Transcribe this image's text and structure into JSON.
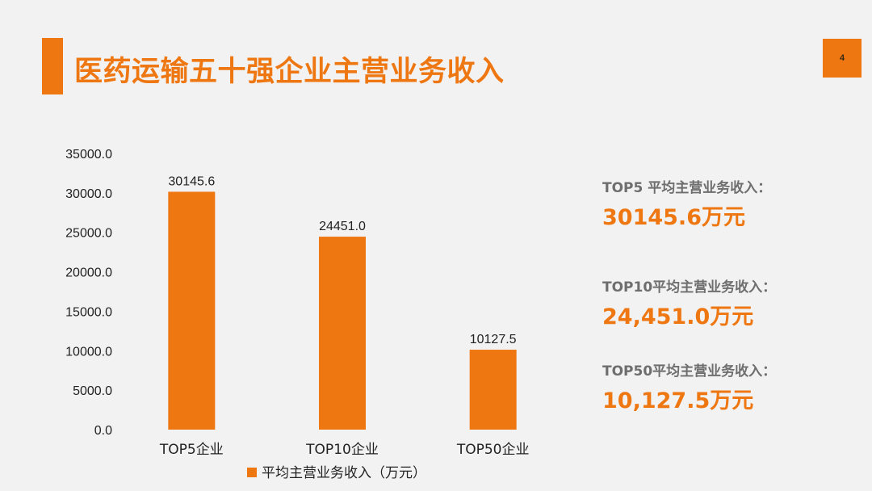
{
  "slide": {
    "title": "医药运输五十强企业主营业务收入",
    "page_number": "4"
  },
  "colors": {
    "accent": "#ee7712",
    "background": "#f2f2f2",
    "stat_label": "#6e6e6e"
  },
  "chart_data": {
    "type": "bar",
    "categories": [
      "TOP5企业",
      "TOP10企业",
      "TOP50企业"
    ],
    "series": [
      {
        "name": "平均主营业务收入（万元）",
        "values": [
          30145.6,
          24451.0,
          10127.5
        ],
        "labels": [
          "30145.6",
          "24451.0",
          "10127.5"
        ],
        "color": "#ee7712"
      }
    ],
    "ylim": [
      0,
      35000
    ],
    "yticks": [
      "0.0",
      "5000.0",
      "10000.0",
      "15000.0",
      "20000.0",
      "25000.0",
      "30000.0",
      "35000.0"
    ],
    "ytick_values": [
      0,
      5000,
      10000,
      15000,
      20000,
      25000,
      30000,
      35000
    ],
    "grid": false,
    "legend_position": "bottom",
    "title": "",
    "xlabel": "",
    "ylabel": ""
  },
  "stats": [
    {
      "label": "TOP5 平均主营业务收入：",
      "value": "30145.6万元"
    },
    {
      "label": "TOP10平均主营业务收入：",
      "value": "24,451.0万元"
    },
    {
      "label": "TOP50平均主营业务收入：",
      "value": "10,127.5万元"
    }
  ]
}
